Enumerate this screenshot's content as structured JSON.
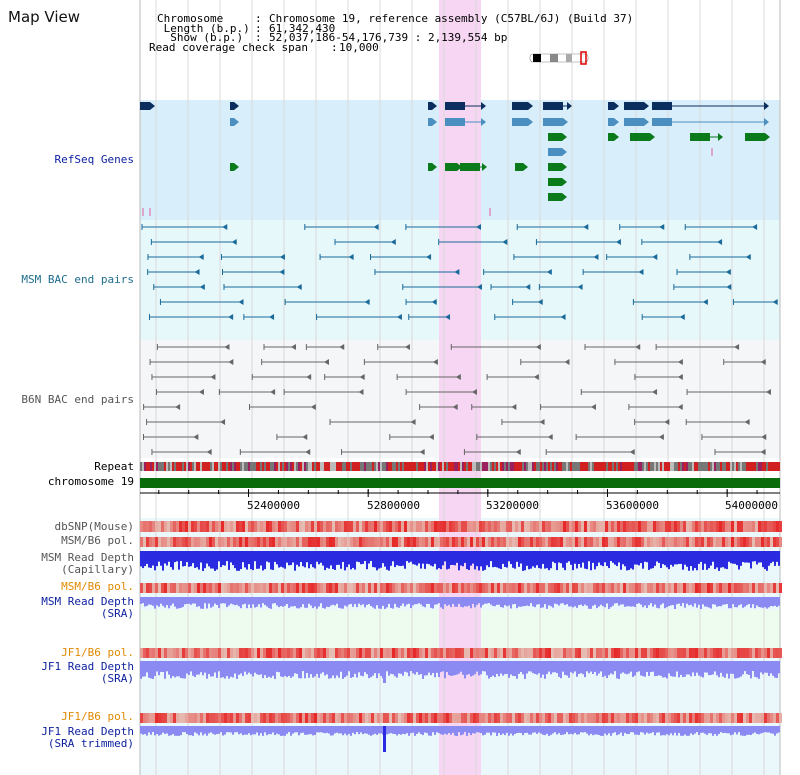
{
  "page": {
    "title": "Map View"
  },
  "header": {
    "chromosome_key": "Chromosome    ",
    "chromosome_value": "Chromosome 19, reference assembly (C57BL/6J) (Build 37)",
    "length_key": " Length (b.p.)",
    "length_value": "61,342,430",
    "show_key": "  Show (b.p.) ",
    "show_value": "52,037,186-54,176,739 : 2,139,554 bp",
    "coverage_key": "Read coverage check span",
    "coverage_value": "10,000"
  },
  "tracks": {
    "refseq": "RefSeq Genes",
    "msm_bac": "MSM BAC end pairs",
    "b6n_bac": "B6N BAC end pairs",
    "repeat": "Repeat",
    "chromosome": "chromosome 19",
    "dbsnp": "dbSNP(Mouse)",
    "msm_b6_pol_1": "MSM/B6 pol.",
    "msm_read_depth_cap_1": "MSM Read Depth",
    "msm_read_depth_cap_2": "(Capillary)",
    "msm_b6_pol_2": "MSM/B6 pol.",
    "msm_read_depth_sra_1": "MSM Read Depth",
    "msm_read_depth_sra_2": "(SRA)",
    "jf1_b6_pol_1": "JF1/B6 pol.",
    "jf1_read_depth_1": "JF1 Read Depth",
    "jf1_read_depth_2": "(SRA)",
    "jf1_b6_pol_2": "JF1/B6 pol.",
    "jf1_read_depth_trim_1": "JF1 Read Depth",
    "jf1_read_depth_trim_2": "(SRA trimmed)"
  },
  "axis": {
    "ticks": [
      "52400000",
      "52800000",
      "53200000",
      "53600000",
      "54000000"
    ],
    "range_start": 52037186,
    "range_end": 54176739
  },
  "colors": {
    "refseq_bg": "#d8eefa",
    "bac_bg": "#e6f8fa",
    "b6n_bg": "#f4f6f8",
    "highlight": "#f6d6f3",
    "chromosome_bar": "#0a6b0a",
    "snp_red": "#e83a3a",
    "depth_blue": "#2a2ae0",
    "depth_light": "#8a8af2",
    "gene_dark": "#0b2e5e",
    "gene_mid": "#4a8fbf",
    "gene_green": "#0a7a1a",
    "bac_teal": "#1a6a9a",
    "bac_gray": "#666666"
  }
}
